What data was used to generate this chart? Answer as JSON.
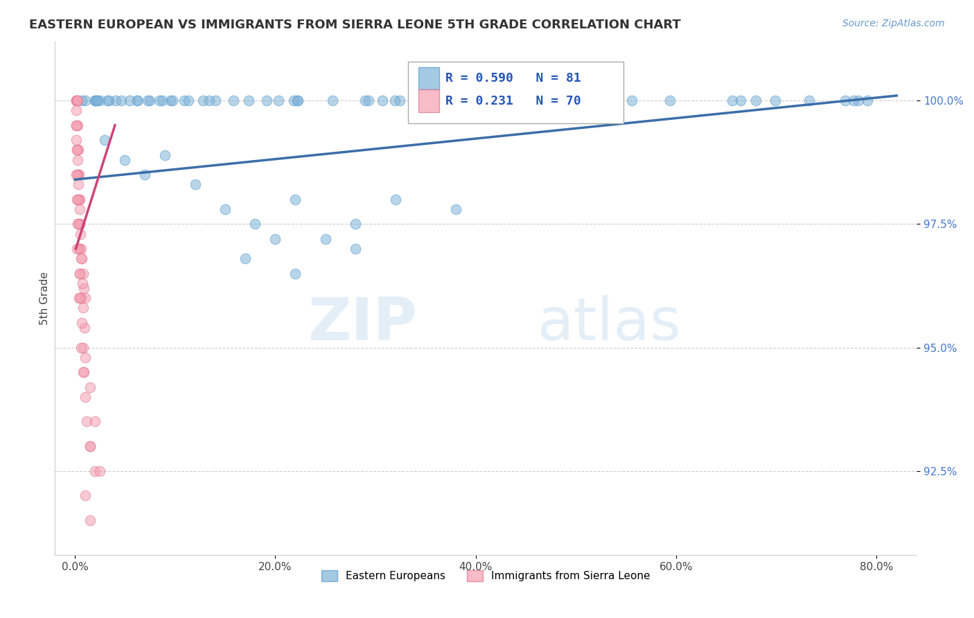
{
  "title": "EASTERN EUROPEAN VS IMMIGRANTS FROM SIERRA LEONE 5TH GRADE CORRELATION CHART",
  "source": "Source: ZipAtlas.com",
  "xlabel_ticks": [
    "0.0%",
    "20.0%",
    "40.0%",
    "60.0%",
    "80.0%"
  ],
  "xlabel_tick_vals": [
    0.0,
    20.0,
    40.0,
    60.0,
    80.0
  ],
  "ylabel_ticks": [
    "100.0%",
    "97.5%",
    "95.0%",
    "92.5%"
  ],
  "ylabel_tick_vals": [
    100.0,
    97.5,
    95.0,
    92.5
  ],
  "xlim": [
    -2.0,
    84
  ],
  "ylim": [
    90.8,
    101.2
  ],
  "ylabel": "5th Grade",
  "legend_blue_label": "Eastern Europeans",
  "legend_pink_label": "Immigrants from Sierra Leone",
  "R_blue": 0.59,
  "N_blue": 81,
  "R_pink": 0.231,
  "N_pink": 70,
  "blue_color": "#7EB3D8",
  "pink_color": "#F4A0B0",
  "blue_edge_color": "#5599CC",
  "pink_edge_color": "#E07090",
  "blue_line_color": "#3B6EA8",
  "pink_line_color": "#CC4477",
  "watermark_zip": "ZIP",
  "watermark_atlas": "atlas",
  "background_color": "#FFFFFF",
  "blue_trend_x0": 0.0,
  "blue_trend_y0": 98.4,
  "blue_trend_x1": 82.0,
  "blue_trend_y1": 100.1,
  "pink_trend_x0": 0.1,
  "pink_trend_y0": 97.0,
  "pink_trend_x1": 4.0,
  "pink_trend_y1": 99.5
}
